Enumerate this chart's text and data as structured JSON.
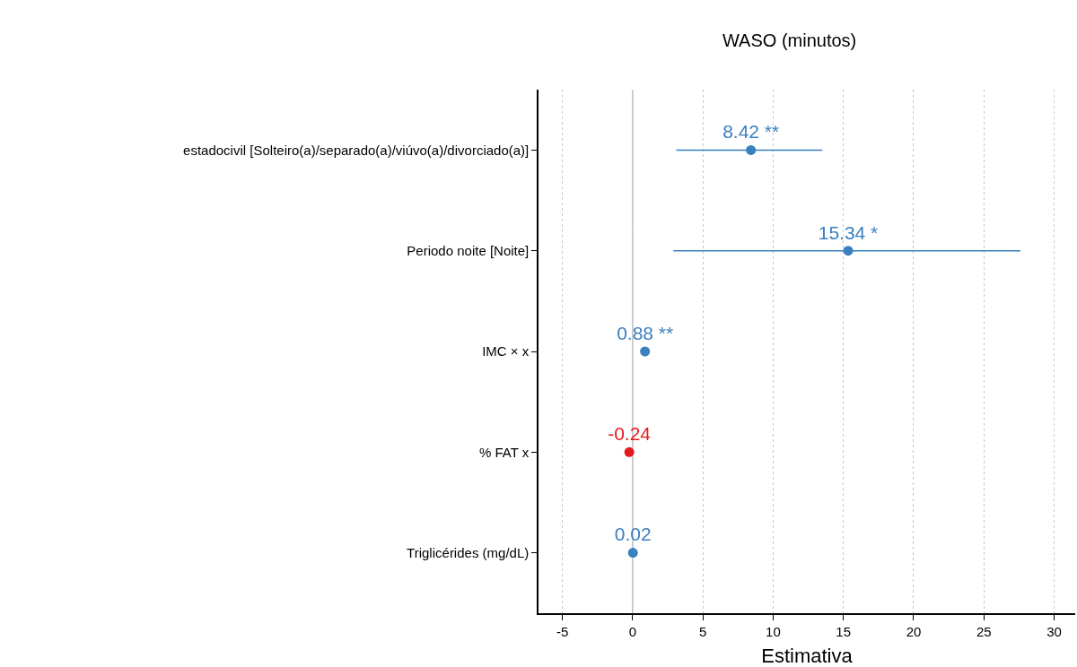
{
  "chart_data": {
    "type": "scatter",
    "orientation": "horizontal",
    "title": "WASO (minutos)",
    "xlabel": "Estimativa",
    "categories": [
      "estadocivil [Solteiro(a)/separado(a)/viúvo(a)/divorciado(a)]",
      "Periodo noite [Noite]",
      "IMC × x",
      "% FAT x",
      "Triglicérides (mg/dL)"
    ],
    "values": [
      8.42,
      15.34,
      0.88,
      -0.24,
      0.02
    ],
    "errors": [
      [
        3.1,
        13.5
      ],
      [
        2.9,
        27.6
      ],
      null,
      null,
      null
    ],
    "colors": [
      "#3a7fc0",
      "#3a7fc0",
      "#3a7fc0",
      "#e41a1c",
      "#3a7fc0"
    ],
    "value_labels": [
      "8.42 **",
      "15.34 *",
      "0.88 **",
      "-0.24",
      "0.02"
    ],
    "xlim": [
      -6.7,
      31.5
    ],
    "xticks": [
      -5,
      0,
      5,
      10,
      15,
      20,
      25,
      30
    ],
    "ref_lines": [
      {
        "axis": "x",
        "value": 0,
        "color": "#bdbdbd"
      }
    ],
    "grid": "x",
    "marker": "circle"
  }
}
